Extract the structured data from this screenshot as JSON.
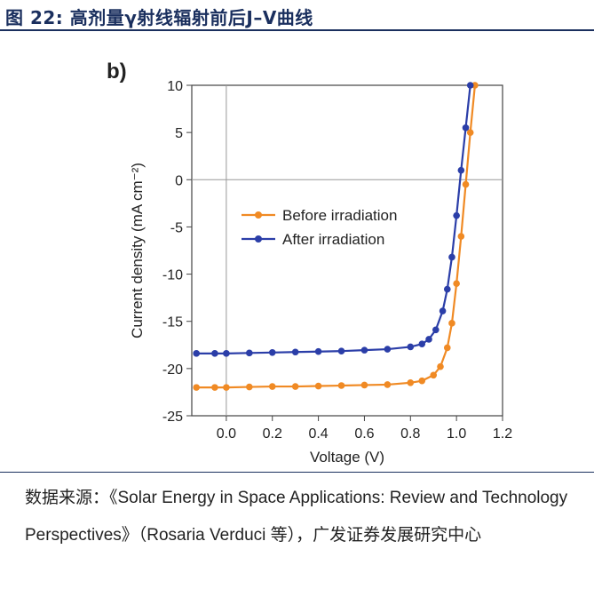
{
  "figure": {
    "title": "图 22: 高剂量γ射线辐射前后J–V曲线"
  },
  "source": {
    "text": "数据来源：《Solar Energy in Space Applications: Review and Technology Perspectives》（Rosaria Verduci 等），广发证券发展研究中心"
  },
  "chart_data": {
    "type": "line",
    "panel_label": "b)",
    "xlabel": "Voltage (V)",
    "ylabel": "Current density (mA cm⁻²)",
    "xlim": [
      -0.15,
      1.2
    ],
    "ylim": [
      -25,
      10
    ],
    "x_ticks": [
      "0.0",
      "0.2",
      "0.4",
      "0.6",
      "0.8",
      "1.0",
      "1.2"
    ],
    "y_ticks": [
      "10",
      "5",
      "0",
      "-5",
      "-10",
      "-15",
      "-20",
      "-25"
    ],
    "grid": false,
    "legend_position": "center",
    "series": [
      {
        "name": "Before irradiation",
        "color": "#f08a24",
        "x": [
          -0.13,
          -0.05,
          0.0,
          0.1,
          0.2,
          0.3,
          0.4,
          0.5,
          0.6,
          0.7,
          0.8,
          0.85,
          0.9,
          0.93,
          0.96,
          0.98,
          1.0,
          1.02,
          1.04,
          1.06,
          1.08
        ],
        "y": [
          -22.0,
          -22.0,
          -22.0,
          -21.95,
          -21.9,
          -21.9,
          -21.85,
          -21.8,
          -21.75,
          -21.7,
          -21.5,
          -21.3,
          -20.7,
          -19.8,
          -17.8,
          -15.2,
          -11.0,
          -6.0,
          -0.5,
          5.0,
          10.5
        ]
      },
      {
        "name": "After irradiation",
        "color": "#2b3ea8",
        "x": [
          -0.13,
          -0.05,
          0.0,
          0.1,
          0.2,
          0.3,
          0.4,
          0.5,
          0.6,
          0.7,
          0.8,
          0.85,
          0.88,
          0.91,
          0.94,
          0.96,
          0.98,
          1.0,
          1.02,
          1.04,
          1.06
        ],
        "y": [
          -18.4,
          -18.4,
          -18.4,
          -18.35,
          -18.3,
          -18.25,
          -18.2,
          -18.15,
          -18.05,
          -17.95,
          -17.7,
          -17.4,
          -16.9,
          -15.9,
          -13.9,
          -11.6,
          -8.2,
          -3.8,
          1.0,
          5.5,
          10.5
        ]
      }
    ]
  }
}
